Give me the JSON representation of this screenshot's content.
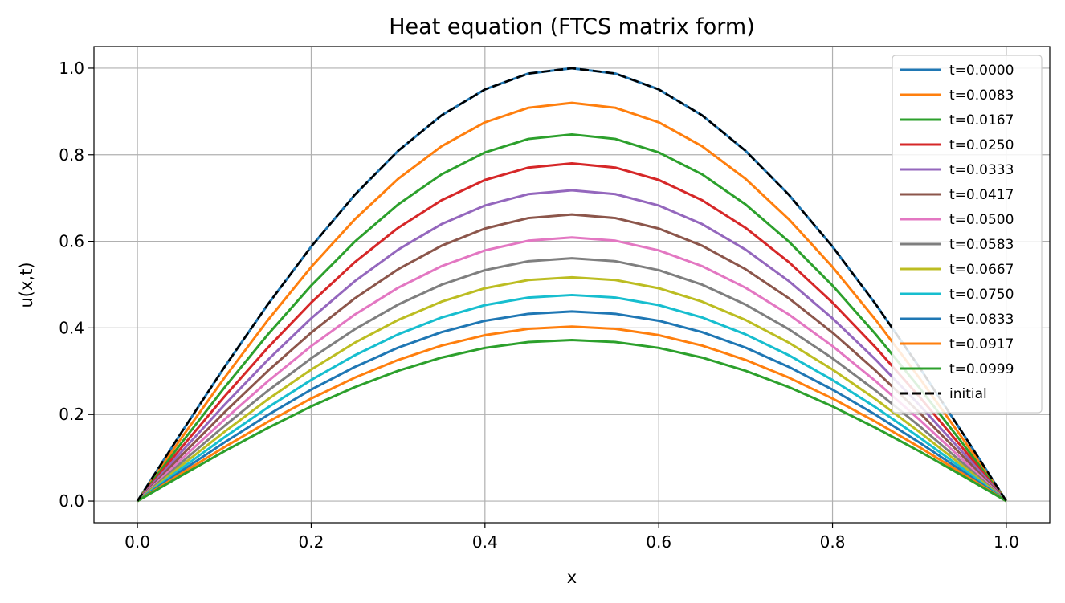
{
  "chart_data": {
    "type": "line",
    "title": "Heat equation (FTCS matrix form)",
    "xlabel": "x",
    "ylabel": "u(x,t)",
    "xlim": [
      -0.05,
      1.05
    ],
    "ylim": [
      -0.05,
      1.05
    ],
    "xticks": [
      "0.0",
      "0.2",
      "0.4",
      "0.6",
      "0.8",
      "1.0"
    ],
    "yticks": [
      "0.0",
      "0.2",
      "0.4",
      "0.6",
      "0.8",
      "1.0"
    ],
    "grid": true,
    "legend_position": "top-right",
    "x": [
      0.0,
      0.05,
      0.1,
      0.15,
      0.2,
      0.25,
      0.3,
      0.35,
      0.4,
      0.45,
      0.5,
      0.55,
      0.6,
      0.65,
      0.7,
      0.75,
      0.8,
      0.85,
      0.9,
      0.95,
      1.0
    ],
    "series": [
      {
        "name": "t=0.0000",
        "color": "#1f77b4",
        "dash": "solid",
        "peak": 1.0
      },
      {
        "name": "t=0.0083",
        "color": "#ff7f0e",
        "dash": "solid",
        "peak": 0.92
      },
      {
        "name": "t=0.0167",
        "color": "#2ca02c",
        "dash": "solid",
        "peak": 0.847
      },
      {
        "name": "t=0.0250",
        "color": "#d62728",
        "dash": "solid",
        "peak": 0.78
      },
      {
        "name": "t=0.0333",
        "color": "#9467bd",
        "dash": "solid",
        "peak": 0.718
      },
      {
        "name": "t=0.0417",
        "color": "#8c564b",
        "dash": "solid",
        "peak": 0.662
      },
      {
        "name": "t=0.0500",
        "color": "#e377c2",
        "dash": "solid",
        "peak": 0.609
      },
      {
        "name": "t=0.0583",
        "color": "#7f7f7f",
        "dash": "solid",
        "peak": 0.561
      },
      {
        "name": "t=0.0667",
        "color": "#bcbd22",
        "dash": "solid",
        "peak": 0.517
      },
      {
        "name": "t=0.0750",
        "color": "#17becf",
        "dash": "solid",
        "peak": 0.476
      },
      {
        "name": "t=0.0833",
        "color": "#1f77b4",
        "dash": "solid",
        "peak": 0.438
      },
      {
        "name": "t=0.0917",
        "color": "#ff7f0e",
        "dash": "solid",
        "peak": 0.403
      },
      {
        "name": "t=0.0999",
        "color": "#2ca02c",
        "dash": "solid",
        "peak": 0.372
      },
      {
        "name": "initial",
        "color": "#000000",
        "dash": "dashed",
        "peak": 1.0
      }
    ]
  }
}
